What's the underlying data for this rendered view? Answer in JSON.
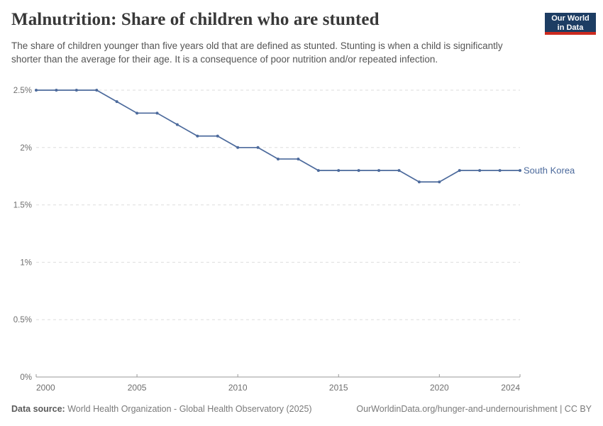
{
  "header": {
    "title": "Malnutrition: Share of children who are stunted",
    "subtitle": "The share of children younger than five years old that are defined as stunted. Stunting is when a child is significantly shorter than the average for their age. It is a consequence of poor nutrition and/or repeated infection.",
    "logo": {
      "line1": "Our World",
      "line2": "in Data",
      "bg_color": "#1d3d63",
      "accent_color": "#cc2a1f"
    }
  },
  "chart_data": {
    "type": "line",
    "title": "Malnutrition: Share of children who are stunted",
    "unit": "%",
    "xlim": [
      2000,
      2024
    ],
    "ylim": [
      0,
      2.5
    ],
    "grid": "horizontal-dashed",
    "legend_position": "end-of-line-label",
    "x": [
      2000,
      2001,
      2002,
      2003,
      2004,
      2005,
      2006,
      2007,
      2008,
      2009,
      2010,
      2011,
      2012,
      2013,
      2014,
      2015,
      2016,
      2017,
      2018,
      2019,
      2020,
      2021,
      2022,
      2023,
      2024
    ],
    "series": [
      {
        "name": "South Korea",
        "color": "#4c6a9c",
        "values": [
          2.5,
          2.5,
          2.5,
          2.5,
          2.4,
          2.3,
          2.3,
          2.2,
          2.1,
          2.1,
          2.0,
          2.0,
          1.9,
          1.9,
          1.8,
          1.8,
          1.8,
          1.8,
          1.8,
          1.7,
          1.7,
          1.8,
          1.8,
          1.8,
          1.8
        ]
      }
    ],
    "x_ticks": [
      2000,
      2005,
      2010,
      2015,
      2020,
      2024
    ],
    "y_ticks": [
      {
        "value": 0,
        "label": "0%"
      },
      {
        "value": 0.5,
        "label": "0.5%"
      },
      {
        "value": 1,
        "label": "1%"
      },
      {
        "value": 1.5,
        "label": "1.5%"
      },
      {
        "value": 2,
        "label": "2%"
      },
      {
        "value": 2.5,
        "label": "2.5%"
      }
    ],
    "colors": {
      "grid": "#dedede",
      "axis": "#999999",
      "tick_label": "#6e6e6e"
    }
  },
  "footer": {
    "datasource_label": "Data source:",
    "datasource_text": "World Health Organization - Global Health Observatory (2025)",
    "link": "OurWorldinData.org/hunger-and-undernourishment | CC BY"
  }
}
